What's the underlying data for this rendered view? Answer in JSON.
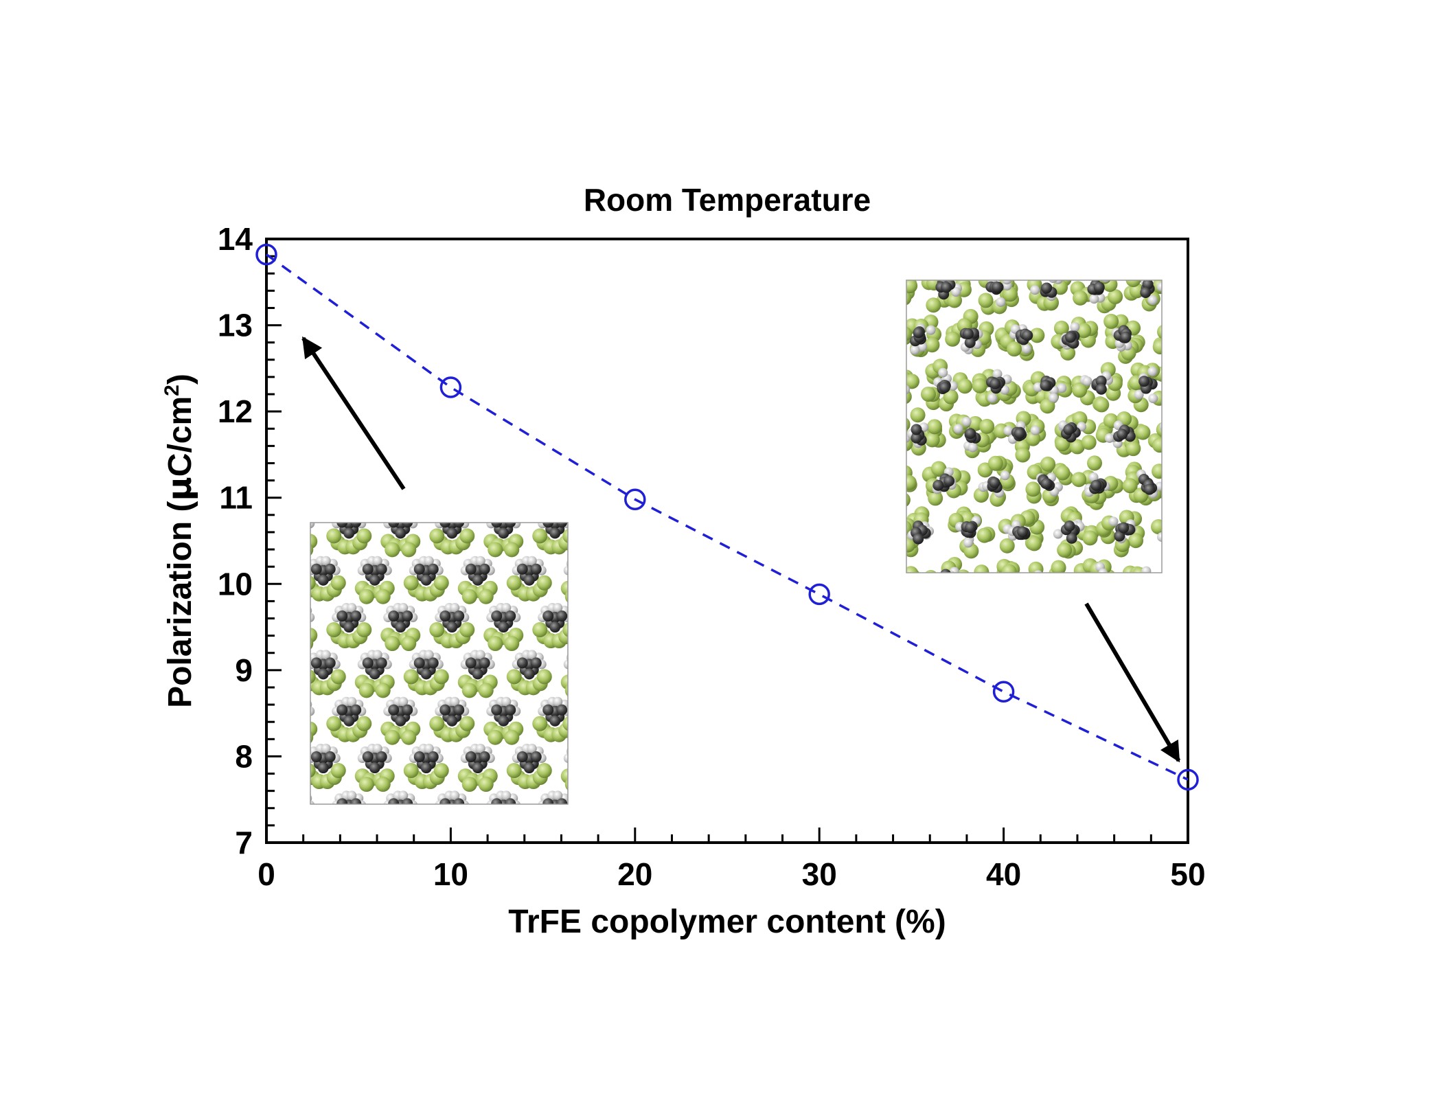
{
  "chart_data": {
    "type": "scatter",
    "title": "Room Temperature",
    "xlabel": "TrFE copolymer content (%)",
    "ylabel": {
      "prefix": "Polarization (",
      "mu": "μ",
      "unit": "C/cm",
      "sup": "2",
      "suffix": ")"
    },
    "xlim": [
      0,
      50
    ],
    "ylim": [
      7,
      14
    ],
    "x_ticks": [
      0,
      10,
      20,
      30,
      40,
      50
    ],
    "y_ticks": [
      7,
      8,
      9,
      10,
      11,
      12,
      13,
      14
    ],
    "x_minor_step": 2,
    "y_minor_step": 0.2,
    "grid": false,
    "series": [
      {
        "x": [
          0,
          10,
          20,
          30,
          40,
          50
        ],
        "y": [
          13.82,
          12.28,
          10.98,
          9.88,
          8.75,
          7.73
        ],
        "marker": "open-circle",
        "line": "dashed",
        "color": "#1f1fd6"
      }
    ],
    "insets": [
      {
        "content": "PVDF crystal structure (0% TrFE)",
        "points_to": {
          "x": 2,
          "y": 12.85
        }
      },
      {
        "content": "P(VDF-TrFE) crystal structure (50% TrFE)",
        "points_to": {
          "x": 49.5,
          "y": 7.95
        }
      }
    ]
  },
  "colors": {
    "series": "#1f1fd6",
    "axis": "#000000",
    "fluorine": "#9fbf5a",
    "fluorine_dark": "#6f8d34",
    "carbon": "#3a3a3a",
    "hydrogen": "#c8c8c8",
    "cell_border": "#9a9a9a"
  }
}
